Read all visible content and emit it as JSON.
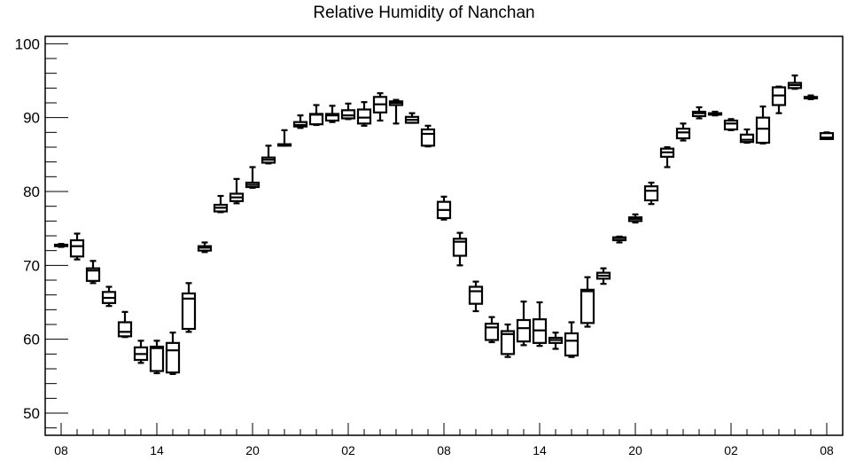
{
  "chart_data": {
    "type": "box",
    "title": "Relative Humidity of Nanchan",
    "xlabel": "",
    "ylabel": "",
    "ylim": [
      47,
      101
    ],
    "yticks": [
      50,
      60,
      70,
      80,
      90,
      100
    ],
    "xtick_labels": [
      {
        "label": "08",
        "hour": 0
      },
      {
        "label": "14",
        "hour": 6
      },
      {
        "label": "20",
        "hour": 12
      },
      {
        "label": "02",
        "hour": 18
      },
      {
        "label": "08",
        "hour": 24
      },
      {
        "label": "14",
        "hour": 30
      },
      {
        "label": "20",
        "hour": 36
      },
      {
        "label": "02",
        "hour": 42
      },
      {
        "label": "08",
        "hour": 48
      }
    ],
    "xlim_hours": [
      -1,
      49
    ],
    "boxes": [
      {
        "hour": 0,
        "min": 72.5,
        "q1": 72.6,
        "median": 72.7,
        "q3": 72.8,
        "max": 72.9
      },
      {
        "hour": 1,
        "min": 70.8,
        "q1": 71.2,
        "median": 72.6,
        "q3": 73.4,
        "max": 74.3
      },
      {
        "hour": 2,
        "min": 67.6,
        "q1": 67.9,
        "median": 69.3,
        "q3": 69.6,
        "max": 70.6
      },
      {
        "hour": 3,
        "min": 64.5,
        "q1": 64.9,
        "median": 65.6,
        "q3": 66.4,
        "max": 67.1
      },
      {
        "hour": 4,
        "min": 60.3,
        "q1": 60.4,
        "median": 61.0,
        "q3": 62.3,
        "max": 63.7
      },
      {
        "hour": 5,
        "min": 56.8,
        "q1": 57.2,
        "median": 58.0,
        "q3": 58.9,
        "max": 59.8
      },
      {
        "hour": 6,
        "min": 55.4,
        "q1": 55.7,
        "median": 58.8,
        "q3": 59.0,
        "max": 59.8
      },
      {
        "hour": 7,
        "min": 55.3,
        "q1": 55.5,
        "median": 58.5,
        "q3": 59.5,
        "max": 60.9
      },
      {
        "hour": 8,
        "min": 61.0,
        "q1": 61.4,
        "median": 65.5,
        "q3": 66.2,
        "max": 67.6
      },
      {
        "hour": 9,
        "min": 71.8,
        "q1": 72.0,
        "median": 72.4,
        "q3": 72.6,
        "max": 73.1
      },
      {
        "hour": 10,
        "min": 77.2,
        "q1": 77.3,
        "median": 77.8,
        "q3": 78.2,
        "max": 79.4
      },
      {
        "hour": 11,
        "min": 78.4,
        "q1": 78.7,
        "median": 79.2,
        "q3": 79.7,
        "max": 81.7
      },
      {
        "hour": 12,
        "min": 80.5,
        "q1": 80.6,
        "median": 80.9,
        "q3": 81.2,
        "max": 83.3
      },
      {
        "hour": 13,
        "min": 83.8,
        "q1": 83.9,
        "median": 84.3,
        "q3": 84.6,
        "max": 86.2
      },
      {
        "hour": 14,
        "min": 86.2,
        "q1": 86.2,
        "median": 86.3,
        "q3": 86.4,
        "max": 88.3
      },
      {
        "hour": 15,
        "min": 88.6,
        "q1": 88.8,
        "median": 89.0,
        "q3": 89.4,
        "max": 90.3
      },
      {
        "hour": 16,
        "min": 89.0,
        "q1": 89.1,
        "median": 90.4,
        "q3": 90.5,
        "max": 91.7
      },
      {
        "hour": 17,
        "min": 89.4,
        "q1": 89.6,
        "median": 90.3,
        "q3": 90.5,
        "max": 91.6
      },
      {
        "hour": 18,
        "min": 89.8,
        "q1": 89.9,
        "median": 90.3,
        "q3": 91.0,
        "max": 91.9
      },
      {
        "hour": 19,
        "min": 88.9,
        "q1": 89.2,
        "median": 90.0,
        "q3": 91.1,
        "max": 92.1
      },
      {
        "hour": 20,
        "min": 89.6,
        "q1": 90.7,
        "median": 91.8,
        "q3": 92.8,
        "max": 93.3
      },
      {
        "hour": 21,
        "min": 89.2,
        "q1": 91.7,
        "median": 92.0,
        "q3": 92.2,
        "max": 92.4
      },
      {
        "hour": 22,
        "min": 89.3,
        "q1": 89.3,
        "median": 89.7,
        "q3": 90.1,
        "max": 90.6
      },
      {
        "hour": 23,
        "min": 86.1,
        "q1": 86.2,
        "median": 87.8,
        "q3": 88.4,
        "max": 88.9
      },
      {
        "hour": 24,
        "min": 76.2,
        "q1": 76.4,
        "median": 77.5,
        "q3": 78.6,
        "max": 79.3
      },
      {
        "hour": 25,
        "min": 70.0,
        "q1": 71.3,
        "median": 73.2,
        "q3": 73.6,
        "max": 74.4
      },
      {
        "hour": 26,
        "min": 63.8,
        "q1": 64.8,
        "median": 66.5,
        "q3": 67.1,
        "max": 67.8
      },
      {
        "hour": 27,
        "min": 59.6,
        "q1": 59.9,
        "median": 61.6,
        "q3": 62.1,
        "max": 63.0
      },
      {
        "hour": 28,
        "min": 57.6,
        "q1": 58.0,
        "median": 60.7,
        "q3": 61.1,
        "max": 62.0
      },
      {
        "hour": 29,
        "min": 59.2,
        "q1": 59.7,
        "median": 61.5,
        "q3": 62.6,
        "max": 65.1
      },
      {
        "hour": 30,
        "min": 59.1,
        "q1": 59.5,
        "median": 61.2,
        "q3": 62.7,
        "max": 65.0
      },
      {
        "hour": 31,
        "min": 58.7,
        "q1": 59.5,
        "median": 59.9,
        "q3": 60.2,
        "max": 60.9
      },
      {
        "hour": 32,
        "min": 57.6,
        "q1": 57.8,
        "median": 59.8,
        "q3": 60.8,
        "max": 62.3
      },
      {
        "hour": 33,
        "min": 61.7,
        "q1": 62.2,
        "median": 66.5,
        "q3": 66.7,
        "max": 68.4
      },
      {
        "hour": 34,
        "min": 67.5,
        "q1": 68.2,
        "median": 68.6,
        "q3": 69.0,
        "max": 69.6
      },
      {
        "hour": 35,
        "min": 73.1,
        "q1": 73.4,
        "median": 73.7,
        "q3": 73.8,
        "max": 73.9
      },
      {
        "hour": 36,
        "min": 75.8,
        "q1": 76.0,
        "median": 76.3,
        "q3": 76.5,
        "max": 76.9
      },
      {
        "hour": 37,
        "min": 78.3,
        "q1": 78.8,
        "median": 80.1,
        "q3": 80.7,
        "max": 81.2
      },
      {
        "hour": 38,
        "min": 83.3,
        "q1": 84.7,
        "median": 85.3,
        "q3": 85.8,
        "max": 86.0
      },
      {
        "hour": 39,
        "min": 86.9,
        "q1": 87.2,
        "median": 88.0,
        "q3": 88.5,
        "max": 89.2
      },
      {
        "hour": 40,
        "min": 89.9,
        "q1": 90.2,
        "median": 90.6,
        "q3": 90.8,
        "max": 91.4
      },
      {
        "hour": 41,
        "min": 90.3,
        "q1": 90.4,
        "median": 90.5,
        "q3": 90.6,
        "max": 90.8
      },
      {
        "hour": 42,
        "min": 88.3,
        "q1": 88.4,
        "median": 89.2,
        "q3": 89.6,
        "max": 89.8
      },
      {
        "hour": 43,
        "min": 86.6,
        "q1": 86.7,
        "median": 87.0,
        "q3": 87.7,
        "max": 88.4
      },
      {
        "hour": 44,
        "min": 86.5,
        "q1": 86.6,
        "median": 88.5,
        "q3": 90.0,
        "max": 91.5
      },
      {
        "hour": 45,
        "min": 90.6,
        "q1": 91.7,
        "median": 93.0,
        "q3": 94.1,
        "max": 94.2
      },
      {
        "hour": 46,
        "min": 93.9,
        "q1": 94.0,
        "median": 94.4,
        "q3": 94.7,
        "max": 95.7
      },
      {
        "hour": 47,
        "min": 92.5,
        "q1": 92.6,
        "median": 92.7,
        "q3": 92.8,
        "max": 93.0
      },
      {
        "hour": 48,
        "min": 87.1,
        "q1": 87.1,
        "median": 87.3,
        "q3": 87.9,
        "max": 88.0
      }
    ]
  }
}
